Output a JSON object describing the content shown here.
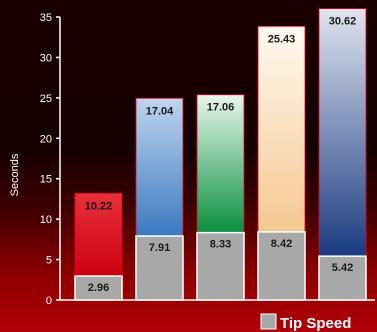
{
  "chart_data": {
    "type": "bar",
    "stacked": true,
    "ylabel": "Seconds",
    "ylim": [
      0,
      35
    ],
    "yticks": [
      0,
      5,
      10,
      15,
      20,
      25,
      30,
      35
    ],
    "grid": false,
    "legend_position": "bottom-right",
    "legend_label": "Tip Speed",
    "series": [
      {
        "name": "Tip Speed",
        "values": [
          2.96,
          7.91,
          8.33,
          8.42,
          5.42
        ],
        "color": "#a8a8a8"
      },
      {
        "values": [
          10.22,
          17.04,
          17.06,
          25.43,
          30.62
        ]
      }
    ],
    "bar_colors": [
      [
        "#cc0010",
        "#e8303c"
      ],
      [
        "#3a7ac0",
        "#c0d4ee"
      ],
      [
        "#0a9040",
        "#e8f6ec"
      ],
      [
        "#f4c890",
        "#fffaf2"
      ],
      [
        "#1a3a80",
        "#e0e4ee"
      ]
    ]
  }
}
